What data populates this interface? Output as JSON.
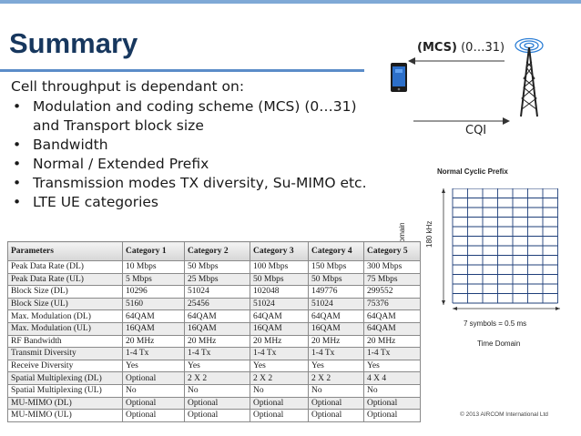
{
  "slide": {
    "title": "Summary",
    "intro": "Cell throughput is dependant on:",
    "bullets": [
      "Modulation and coding scheme (MCS) (0…31)\nand Transport block size",
      "Bandwidth",
      "Normal / Extended Prefix",
      "Transmission modes TX diversity, Su-MIMO etc.",
      "LTE UE categories"
    ],
    "bullet_symbol": "•"
  },
  "diagram": {
    "mcs_bold": "(MCS)",
    "mcs_range": "(0…31)",
    "cqi": "CQI",
    "grid_title": "Normal Cyclic Prefix",
    "axis_domain": "Domain",
    "axis_khz": "180 kHz",
    "symbols": "7 symbols = 0.5 ms",
    "time_domain": "Time Domain",
    "copyright": "© 2013 AIRCOM International Ltd"
  },
  "table": {
    "headers": [
      "Parameters",
      "Category 1",
      "Category 2",
      "Category 3",
      "Category 4",
      "Category 5"
    ],
    "rows": [
      [
        "Peak Data Rate (DL)",
        "10 Mbps",
        "50 Mbps",
        "100 Mbps",
        "150 Mbps",
        "300 Mbps"
      ],
      [
        "Peak Data Rate (UL)",
        "5 Mbps",
        "25 Mbps",
        "50 Mbps",
        "50 Mbps",
        "75 Mbps"
      ],
      [
        "Block Size (DL)",
        "10296",
        "51024",
        "102048",
        "149776",
        "299552"
      ],
      [
        "Block Size (UL)",
        "5160",
        "25456",
        "51024",
        "51024",
        "75376"
      ],
      [
        "Max. Modulation (DL)",
        "64QAM",
        "64QAM",
        "64QAM",
        "64QAM",
        "64QAM"
      ],
      [
        "Max. Modulation (UL)",
        "16QAM",
        "16QAM",
        "16QAM",
        "16QAM",
        "64QAM"
      ],
      [
        "RF Bandwidth",
        "20 MHz",
        "20 MHz",
        "20 MHz",
        "20 MHz",
        "20 MHz"
      ],
      [
        "Transmit Diversity",
        "1-4 Tx",
        "1-4 Tx",
        "1-4 Tx",
        "1-4 Tx",
        "1-4 Tx"
      ],
      [
        "Receive Diversity",
        "Yes",
        "Yes",
        "Yes",
        "Yes",
        "Yes"
      ],
      [
        "Spatial Multiplexing  (DL)",
        "Optional",
        "2 X 2",
        "2 X 2",
        "2 X 2",
        "4 X 4"
      ],
      [
        "Spatial Multiplexing  (UL)",
        "No",
        "No",
        "No",
        "No",
        "No"
      ],
      [
        "MU-MIMO (DL)",
        "Optional",
        "Optional",
        "Optional",
        "Optional",
        "Optional"
      ],
      [
        "MU-MIMO (UL)",
        "Optional",
        "Optional",
        "Optional",
        "Optional",
        "Optional"
      ]
    ]
  },
  "colors": {
    "title": "#17375e",
    "accent_rule": "#5b8cc8",
    "grid_line": "#1f3f7a"
  },
  "icons": [
    "phone-icon",
    "cell-tower-icon",
    "signal-waves-icon",
    "arrow-left-icon"
  ]
}
